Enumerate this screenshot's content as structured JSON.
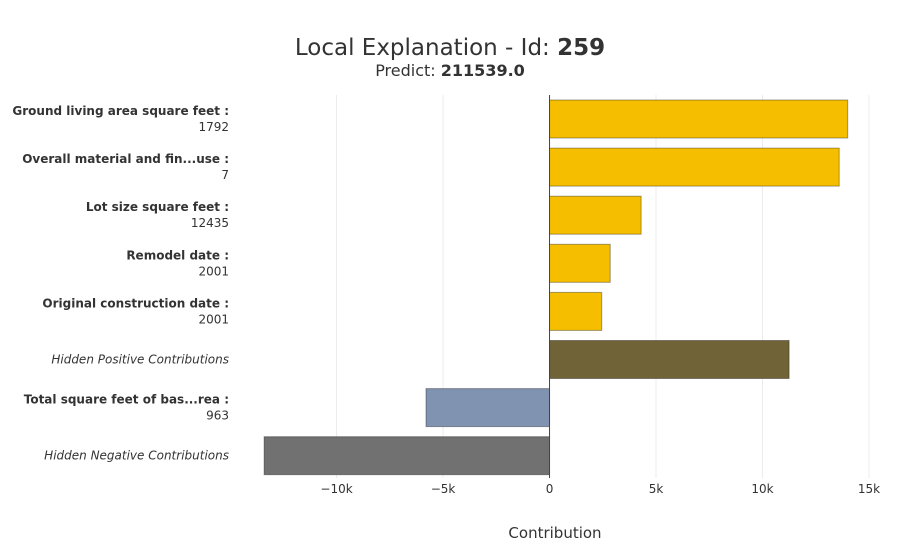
{
  "chart_data": {
    "type": "bar",
    "orientation": "horizontal",
    "title_prefix": "Local Explanation - Id: ",
    "title_id": "259",
    "subtitle_prefix": "Predict: ",
    "subtitle_value": "211539.0",
    "xlabel": "Contribution",
    "ylabel": "",
    "xlim": [
      -13500,
      15000
    ],
    "xticks": [
      {
        "value": -10000,
        "label": "−10k"
      },
      {
        "value": -5000,
        "label": "−5k"
      },
      {
        "value": 0,
        "label": "0"
      },
      {
        "value": 5000,
        "label": "5k"
      },
      {
        "value": 10000,
        "label": "10k"
      },
      {
        "value": 15000,
        "label": "15k"
      }
    ],
    "grid": true,
    "legend": "none",
    "bars": [
      {
        "name": "Ground living area square feet :",
        "feature_value": "1792",
        "value": 14000,
        "kind": "positive"
      },
      {
        "name": "Overall material and fin...use :",
        "feature_value": "7",
        "value": 13600,
        "kind": "positive"
      },
      {
        "name": "Lot size square feet :",
        "feature_value": "12435",
        "value": 4300,
        "kind": "positive"
      },
      {
        "name": "Remodel date :",
        "feature_value": "2001",
        "value": 2850,
        "kind": "positive"
      },
      {
        "name": "Original construction date :",
        "feature_value": "2001",
        "value": 2450,
        "kind": "positive"
      },
      {
        "name": "Hidden Positive Contributions",
        "feature_value": "",
        "value": 11250,
        "kind": "hidden-positive"
      },
      {
        "name": "Total square feet of bas...rea :",
        "feature_value": "963",
        "value": -5800,
        "kind": "negative"
      },
      {
        "name": "Hidden Negative Contributions",
        "feature_value": "",
        "value": -13400,
        "kind": "hidden-negative"
      }
    ],
    "colors": {
      "positive": "#f5bf00",
      "hidden-positive": "#6f6337",
      "negative": "#8093b1",
      "hidden-negative": "#717171"
    }
  }
}
